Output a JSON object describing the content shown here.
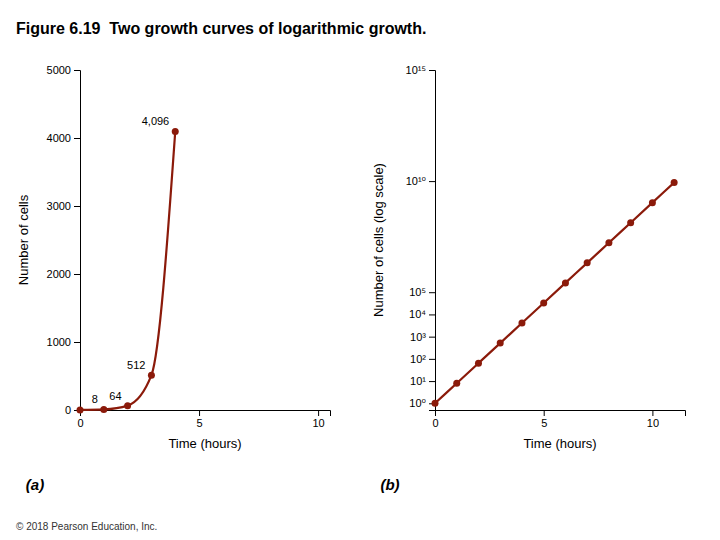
{
  "chart_data": [
    {
      "type": "line",
      "title": "Figure 6.19  Two growth curves of logarithmic growth.",
      "xlabel": "Time (hours)",
      "ylabel": "Number of cells",
      "x": [
        0,
        1,
        2,
        3,
        4
      ],
      "values": [
        1,
        8,
        64,
        512,
        4096
      ],
      "value_labels": [
        null,
        "8",
        "64",
        "512",
        "4,096"
      ],
      "data_labels": true,
      "color": "#8B1A0A",
      "marker": "circle",
      "xlim": [
        0,
        10.5
      ],
      "ylim": [
        0,
        5000
      ],
      "xticks": [
        0,
        5,
        10
      ],
      "yticks": [
        0,
        1000,
        2000,
        3000,
        4000,
        5000
      ],
      "grid": false,
      "annotations": [
        "(a)",
        "© 2018 Pearson Education, Inc."
      ]
    },
    {
      "type": "line",
      "xlabel": "Time (hours)",
      "ylabel": "Number of cells (log scale)",
      "x": [
        0,
        1,
        2,
        3,
        4,
        5,
        6,
        7,
        8,
        9,
        10,
        11
      ],
      "values": [
        1,
        8,
        64,
        512,
        4096,
        32768,
        262144,
        2097152,
        16777216,
        134217728,
        1073741824,
        8589934592
      ],
      "color": "#8B1A0A",
      "marker": "circle",
      "log": "y",
      "xlim": [
        0,
        11.5
      ],
      "ylim": [
        0.5,
        1000000000000000
      ],
      "xticks": [
        0,
        5,
        10
      ],
      "yticks": [
        {
          "value": 1,
          "label": "10⁰"
        },
        {
          "value": 10,
          "label": "10¹"
        },
        {
          "value": 100,
          "label": "10²"
        },
        {
          "value": 1000,
          "label": "10³"
        },
        {
          "value": 10000,
          "label": "10⁴"
        },
        {
          "value": 100000,
          "label": "10⁵"
        },
        {
          "value": 10000000000,
          "label": "10¹⁰"
        },
        {
          "value": 1000000000000000,
          "label": "10¹⁵"
        }
      ],
      "grid": false,
      "annotations": [
        "(b)"
      ]
    }
  ]
}
